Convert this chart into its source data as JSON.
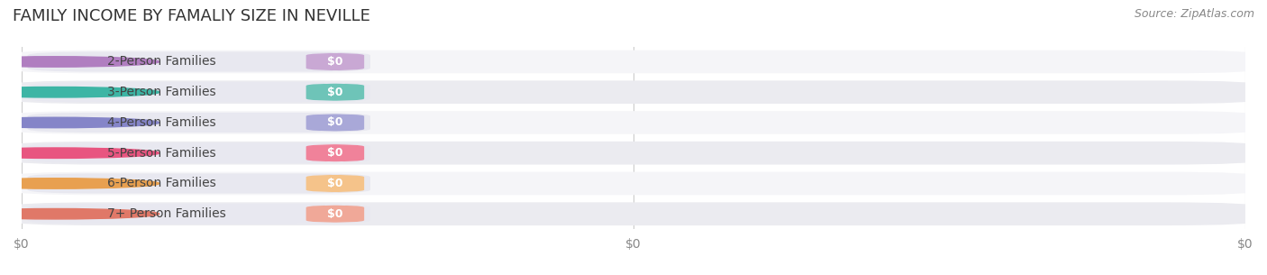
{
  "title": "FAMILY INCOME BY FAMALIY SIZE IN NEVILLE",
  "source": "Source: ZipAtlas.com",
  "categories": [
    "2-Person Families",
    "3-Person Families",
    "4-Person Families",
    "5-Person Families",
    "6-Person Families",
    "7+ Person Families"
  ],
  "values": [
    0,
    0,
    0,
    0,
    0,
    0
  ],
  "bar_colors": [
    "#c9a8d4",
    "#6ec4b8",
    "#a9a8d8",
    "#f0829a",
    "#f5c38a",
    "#f0a898"
  ],
  "dot_colors": [
    "#b07ec0",
    "#3db5a5",
    "#8585c8",
    "#e85580",
    "#e8a050",
    "#e07868"
  ],
  "label_bg": "#f0f0f5",
  "bar_bg": "#f0f0f5",
  "background_color": "#ffffff",
  "title_fontsize": 13,
  "source_fontsize": 9,
  "label_fontsize": 10,
  "value_fontsize": 10,
  "xtick_labels": [
    "$0",
    "$0",
    "$0"
  ],
  "xlim": [
    0,
    2
  ],
  "figsize": [
    14.06,
    3.05
  ],
  "dpi": 100
}
